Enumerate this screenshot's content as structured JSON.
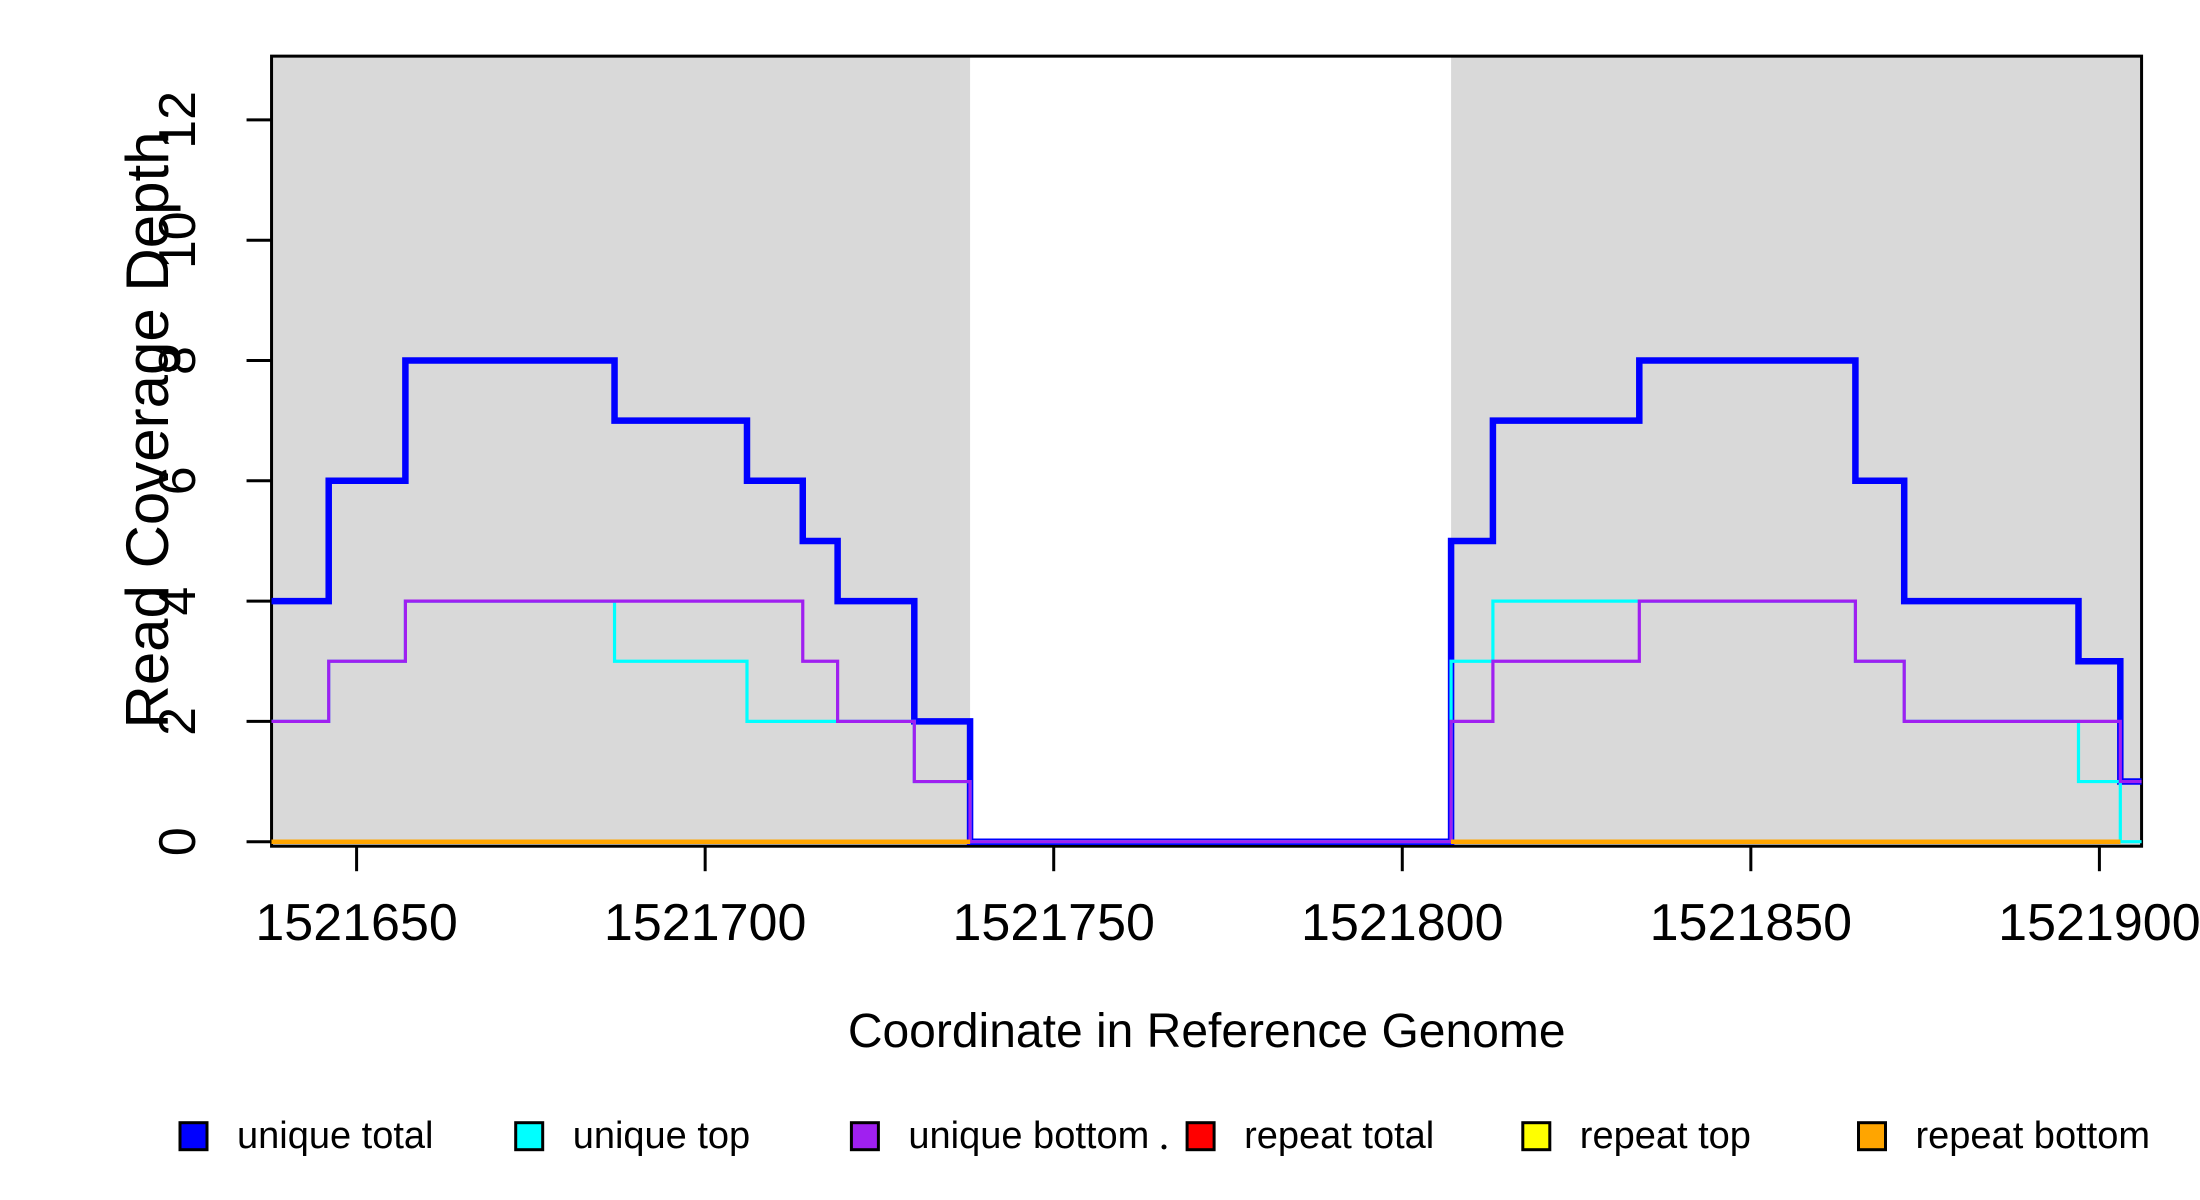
{
  "chart_data": {
    "type": "step-line",
    "title": "",
    "xlabel": "Coordinate in Reference Genome",
    "ylabel": "Read Coverage Depth",
    "x_ticks": [
      1521650,
      1521700,
      1521750,
      1521800,
      1521850,
      1521900
    ],
    "y_ticks": [
      0,
      2,
      4,
      6,
      8,
      10,
      12
    ],
    "x_range": [
      1521637.8,
      1521906.05
    ],
    "y_range": [
      -0.075,
      13.06
    ],
    "grid": false,
    "legend_position": "bottom",
    "region_fill": "#D9D9D9",
    "shaded_regions": [
      {
        "name": "read-block-1",
        "from": 1521637.8,
        "to": 1521738
      },
      {
        "name": "read-block-2",
        "from": 1521807,
        "to": 1521906.05
      }
    ],
    "series": [
      {
        "name": "unique total",
        "color": "#0000FF",
        "line_width": 6.5,
        "steps": [
          [
            1521637.8,
            4
          ],
          [
            1521646,
            6
          ],
          [
            1521657,
            8
          ],
          [
            1521687,
            7
          ],
          [
            1521706,
            6
          ],
          [
            1521714,
            5
          ],
          [
            1521719,
            4
          ],
          [
            1521730,
            2
          ],
          [
            1521738,
            0
          ],
          [
            1521807,
            5
          ],
          [
            1521813,
            7
          ],
          [
            1521834,
            8
          ],
          [
            1521865,
            6
          ],
          [
            1521872,
            4
          ],
          [
            1521897,
            3
          ],
          [
            1521903,
            1
          ]
        ],
        "end": 1521906.05
      },
      {
        "name": "unique top",
        "color": "#00FFFF",
        "line_width": 3.2,
        "steps": [
          [
            1521637.8,
            2
          ],
          [
            1521646,
            3
          ],
          [
            1521657,
            4
          ],
          [
            1521687,
            3
          ],
          [
            1521706,
            2
          ],
          [
            1521730,
            1
          ],
          [
            1521738,
            0
          ],
          [
            1521807,
            3
          ],
          [
            1521813,
            4
          ],
          [
            1521865,
            3
          ],
          [
            1521872,
            2
          ],
          [
            1521897,
            1
          ],
          [
            1521903,
            0
          ]
        ],
        "end": 1521906.05
      },
      {
        "name": "unique bottom",
        "color": "#A020F0",
        "line_width": 3.2,
        "steps": [
          [
            1521637.8,
            2
          ],
          [
            1521646,
            3
          ],
          [
            1521657,
            4
          ],
          [
            1521714,
            3
          ],
          [
            1521719,
            2
          ],
          [
            1521730,
            1
          ],
          [
            1521738,
            0
          ],
          [
            1521807,
            2
          ],
          [
            1521813,
            3
          ],
          [
            1521834,
            4
          ],
          [
            1521865,
            3
          ],
          [
            1521872,
            2
          ],
          [
            1521903,
            1
          ]
        ],
        "end": 1521906.05
      },
      {
        "name": "repeat total",
        "color": "#FF0000",
        "line_width": 4.5,
        "constant_segments": [
          {
            "value": 0,
            "from": 1521637.8,
            "to": 1521738
          },
          {
            "value": 0,
            "from": 1521807,
            "to": 1521903
          }
        ]
      },
      {
        "name": "repeat top",
        "color": "#FFFF00",
        "line_width": 4.5,
        "constant_segments": [
          {
            "value": 0,
            "from": 1521637.8,
            "to": 1521738
          },
          {
            "value": 0,
            "from": 1521807,
            "to": 1521903
          }
        ]
      },
      {
        "name": "repeat bottom",
        "color": "#FFA500",
        "line_width": 4.5,
        "constant_segments": [
          {
            "value": 0,
            "from": 1521637.8,
            "to": 1521738
          },
          {
            "value": 0,
            "from": 1521807,
            "to": 1521903
          }
        ]
      }
    ],
    "legend": [
      {
        "label": "unique total",
        "color": "#0000FF"
      },
      {
        "label": "unique top",
        "color": "#00FFFF"
      },
      {
        "label": "unique bottom",
        "color": "#A020F0"
      },
      {
        "label": "repeat total",
        "color": "#FF0000"
      },
      {
        "label": "repeat top",
        "color": "#FFFF00"
      },
      {
        "label": "repeat bottom",
        "color": "#FFA500"
      }
    ]
  }
}
